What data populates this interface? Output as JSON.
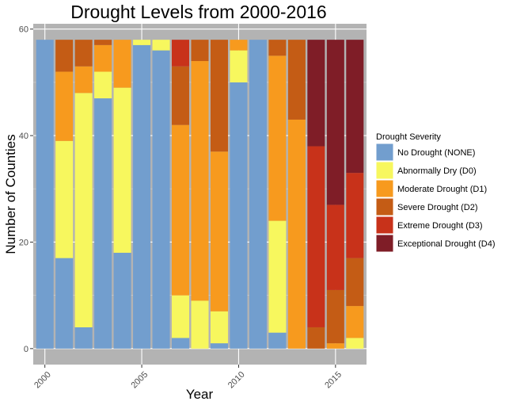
{
  "chart_data": {
    "type": "bar",
    "stacked": true,
    "title": "Drought Levels from 2000-2016",
    "xlabel": "Year",
    "ylabel": "Number of Counties",
    "x": [
      2000,
      2001,
      2002,
      2003,
      2004,
      2005,
      2006,
      2007,
      2008,
      2009,
      2010,
      2011,
      2012,
      2013,
      2014,
      2015,
      2016
    ],
    "xticks": [
      "2000",
      "2005",
      "2010",
      "2015"
    ],
    "yticks": [
      "0",
      "20",
      "40",
      "60"
    ],
    "ylim": [
      -3,
      61
    ],
    "grid": true,
    "legend_title": "Drought Severity",
    "legend_position": "right",
    "series": [
      {
        "name": "No Drought (NONE)",
        "color": "#729ECE",
        "values": [
          58,
          17,
          4,
          47,
          18,
          57,
          56,
          2,
          0,
          1,
          50,
          58,
          3,
          0,
          0,
          0,
          0
        ]
      },
      {
        "name": "Abnormally Dry (D0)",
        "color": "#F7F75E",
        "values": [
          0,
          22,
          44,
          5,
          31,
          1,
          2,
          8,
          9,
          6,
          6,
          0,
          21,
          0,
          0,
          0,
          2
        ]
      },
      {
        "name": "Moderate Drought (D1)",
        "color": "#F79A1E",
        "values": [
          0,
          13,
          5,
          5,
          9,
          0,
          0,
          32,
          45,
          30,
          2,
          0,
          31,
          43,
          0,
          1,
          6
        ]
      },
      {
        "name": "Severe Drought (D2)",
        "color": "#C45C15",
        "values": [
          0,
          6,
          5,
          1,
          0,
          0,
          0,
          11,
          4,
          21,
          0,
          0,
          3,
          15,
          4,
          10,
          9
        ]
      },
      {
        "name": "Extreme Drought (D3)",
        "color": "#C8321A",
        "values": [
          0,
          0,
          0,
          0,
          0,
          0,
          0,
          5,
          0,
          0,
          0,
          0,
          0,
          0,
          34,
          16,
          16
        ]
      },
      {
        "name": "Exceptional Drought (D4)",
        "color": "#7F1D27",
        "values": [
          0,
          0,
          0,
          0,
          0,
          0,
          0,
          0,
          0,
          0,
          0,
          0,
          0,
          0,
          20,
          31,
          25
        ]
      }
    ]
  }
}
